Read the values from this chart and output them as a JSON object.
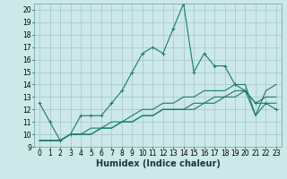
{
  "title": "",
  "xlabel": "Humidex (Indice chaleur)",
  "ylabel": "",
  "bg_color": "#cce8e8",
  "grid_color": "#aacccc",
  "line_color": "#1a7a6e",
  "x": [
    0,
    1,
    2,
    3,
    4,
    5,
    6,
    7,
    8,
    9,
    10,
    11,
    12,
    13,
    14,
    15,
    16,
    17,
    18,
    19,
    20,
    21,
    22,
    23
  ],
  "series1": [
    12.5,
    11.0,
    9.5,
    10.0,
    11.5,
    11.5,
    11.5,
    12.5,
    13.5,
    15.0,
    16.5,
    17.0,
    16.5,
    18.5,
    20.5,
    15.0,
    16.5,
    15.5,
    15.5,
    14.0,
    13.5,
    12.5,
    12.5,
    12.0
  ],
  "series3": [
    9.5,
    9.5,
    9.5,
    10.0,
    10.0,
    10.0,
    10.5,
    10.5,
    11.0,
    11.0,
    11.5,
    11.5,
    12.0,
    12.0,
    12.0,
    12.0,
    12.5,
    12.5,
    13.0,
    13.0,
    13.5,
    12.5,
    13.0,
    13.0
  ],
  "series4": [
    9.5,
    9.5,
    9.5,
    10.0,
    10.0,
    10.0,
    10.5,
    10.5,
    11.0,
    11.0,
    11.5,
    11.5,
    12.0,
    12.0,
    12.0,
    12.5,
    12.5,
    13.0,
    13.0,
    13.5,
    13.5,
    11.5,
    12.5,
    12.5
  ],
  "series5": [
    9.5,
    9.5,
    9.5,
    10.0,
    10.0,
    10.5,
    10.5,
    11.0,
    11.0,
    11.5,
    12.0,
    12.0,
    12.5,
    12.5,
    13.0,
    13.0,
    13.5,
    13.5,
    13.5,
    14.0,
    14.0,
    11.5,
    13.5,
    14.0
  ],
  "ylim": [
    9,
    20.5
  ],
  "xlim": [
    -0.5,
    23.5
  ],
  "yticks": [
    9,
    10,
    11,
    12,
    13,
    14,
    15,
    16,
    17,
    18,
    19,
    20
  ],
  "xticks": [
    0,
    1,
    2,
    3,
    4,
    5,
    6,
    7,
    8,
    9,
    10,
    11,
    12,
    13,
    14,
    15,
    16,
    17,
    18,
    19,
    20,
    21,
    22,
    23
  ],
  "tick_fontsize": 5.5,
  "xlabel_fontsize": 7.0
}
